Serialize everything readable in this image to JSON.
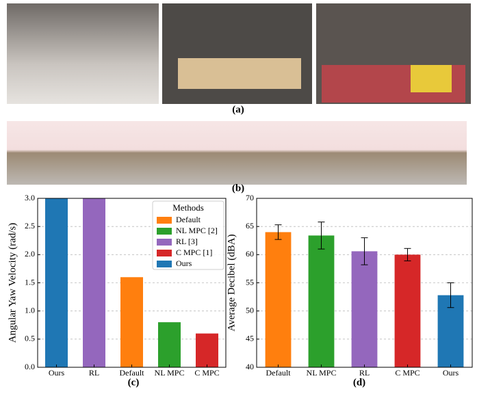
{
  "panel_labels": [
    "(a)",
    "(b)",
    "(c)",
    "(d)"
  ],
  "chart_data": [
    {
      "type": "bar",
      "ylabel": "Angular Yaw Velocity (rad/s)",
      "categories": [
        "Ours",
        "RL",
        "Default",
        "NL MPC",
        "C MPC"
      ],
      "values": [
        3.0,
        3.0,
        1.6,
        0.8,
        0.6
      ],
      "colors": [
        "#1f77b4",
        "#9467bd",
        "#ff7f0e",
        "#2ca02c",
        "#d62728"
      ],
      "ylim": [
        0,
        3.0
      ],
      "yticks": [
        {
          "value": 0,
          "label": "0.0"
        },
        {
          "value": 0.5,
          "label": "0.5"
        },
        {
          "value": 1,
          "label": "1.0"
        },
        {
          "value": 1.5,
          "label": "1.5"
        },
        {
          "value": 2,
          "label": "2.0"
        },
        {
          "value": 2.5,
          "label": "2.5"
        },
        {
          "value": 3,
          "label": "3.0"
        }
      ],
      "grid": true,
      "legend": {
        "title": "Methods",
        "entries": [
          {
            "name": "Default",
            "color": "#ff7f0e"
          },
          {
            "name": "NL MPC [2]",
            "color": "#2ca02c"
          },
          {
            "name": "RL [3]",
            "color": "#9467bd"
          },
          {
            "name": "C MPC [1]",
            "color": "#d62728"
          },
          {
            "name": "Ours",
            "color": "#1f77b4"
          }
        ]
      }
    },
    {
      "type": "bar",
      "ylabel": "Average Decibel (dBA)",
      "categories": [
        "Default",
        "NL MPC",
        "RL",
        "C MPC",
        "Ours"
      ],
      "values": [
        64,
        63.4,
        60.6,
        60,
        52.8
      ],
      "errors": [
        1.3,
        2.4,
        2.4,
        1.1,
        2.2
      ],
      "colors": [
        "#ff7f0e",
        "#2ca02c",
        "#9467bd",
        "#d62728",
        "#1f77b4"
      ],
      "ylim": [
        40,
        70
      ],
      "yticks": [
        40,
        45,
        50,
        55,
        60,
        65,
        70
      ],
      "grid": true
    }
  ]
}
